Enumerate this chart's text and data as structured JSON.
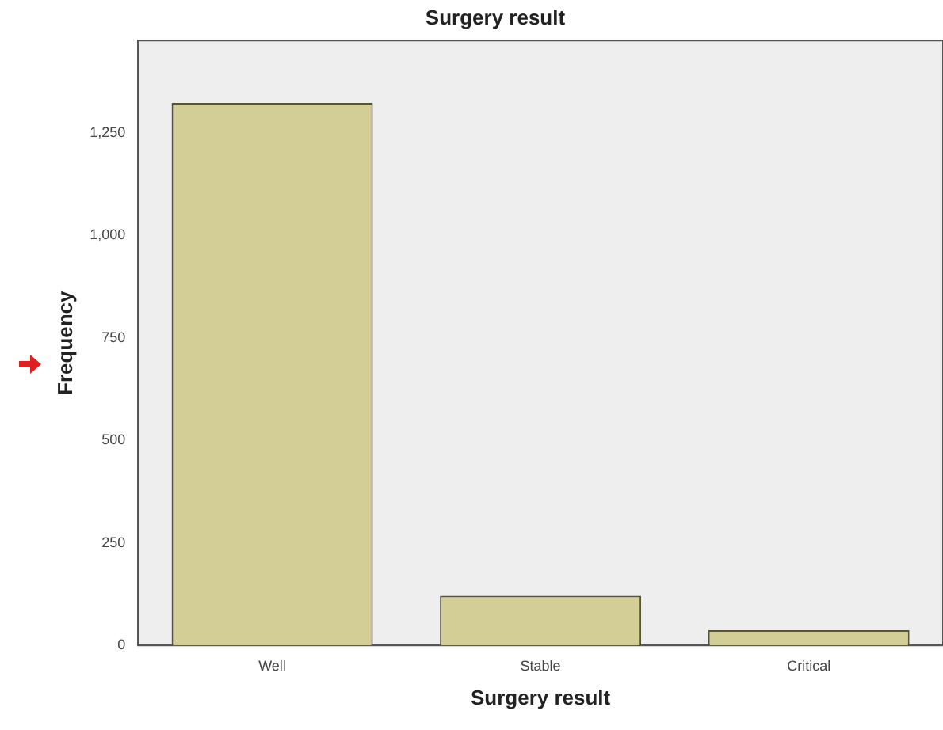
{
  "chart_data": {
    "type": "bar",
    "title": "Surgery result",
    "xlabel": "Surgery result",
    "ylabel": "Frequency",
    "categories": [
      "Well",
      "Stable",
      "Critical"
    ],
    "values": [
      1323,
      121,
      37
    ],
    "color": "#d3cd96",
    "ylim": [
      0,
      1475
    ],
    "yticks": [
      {
        "value": 0,
        "label": "0"
      },
      {
        "value": 250,
        "label": "250"
      },
      {
        "value": 500,
        "label": "500"
      },
      {
        "value": 750,
        "label": "750"
      },
      {
        "value": 1000,
        "label": "1,000"
      },
      {
        "value": 1250,
        "label": "1,250"
      }
    ],
    "grid": false,
    "legend": false
  }
}
